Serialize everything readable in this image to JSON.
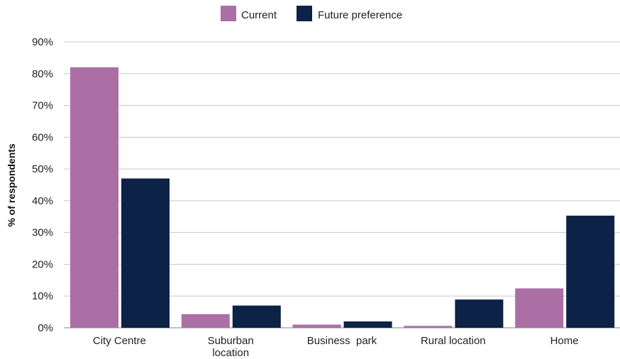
{
  "chart_data": {
    "type": "bar",
    "title": "",
    "xlabel": "",
    "ylabel": "% of respondents",
    "categories": [
      [
        "City Centre"
      ],
      [
        "Suburban",
        "location"
      ],
      [
        "Business  park"
      ],
      [
        "Rural location"
      ],
      [
        "Home"
      ]
    ],
    "series": [
      {
        "name": "Current",
        "color": "#ab6fa5",
        "values": [
          82,
          4.3,
          1.0,
          0.6,
          12.4
        ]
      },
      {
        "name": "Future preference",
        "color": "#0c2347",
        "values": [
          47,
          7.0,
          2.0,
          8.9,
          35.3
        ]
      }
    ],
    "ylim": [
      0,
      90
    ],
    "yticks": [
      0,
      10,
      20,
      30,
      40,
      50,
      60,
      70,
      80,
      90
    ],
    "ytick_labels": [
      "0%",
      "10%",
      "20%",
      "30%",
      "40%",
      "50%",
      "60%",
      "70%",
      "80%",
      "90%"
    ],
    "grid": true,
    "legend_position": "top-center",
    "gridline_color": "#c8c8c8",
    "axis_color": "#9a9a9a"
  }
}
